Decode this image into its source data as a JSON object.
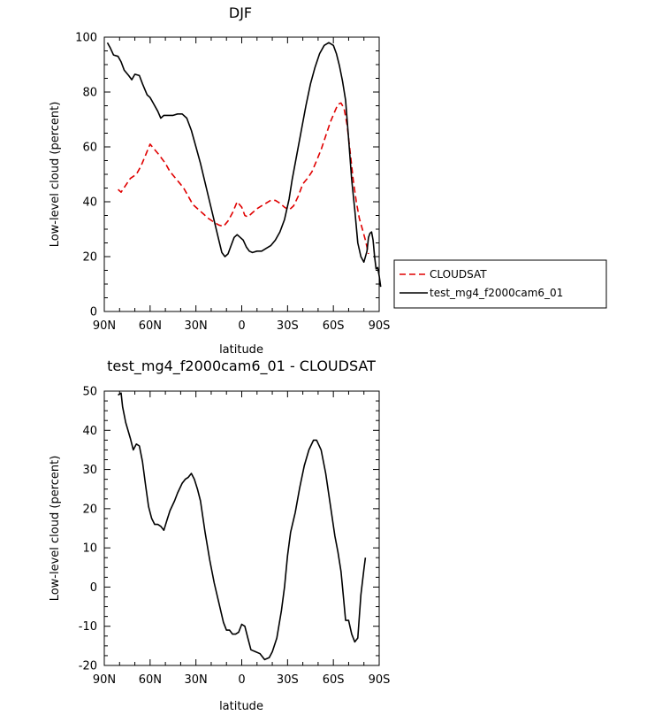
{
  "chart_data": [
    {
      "type": "line",
      "title": "DJF",
      "xlabel": "latitude",
      "ylabel": "Low-level cloud (percent)",
      "x_direction": "north-to-south",
      "xlim": [
        90,
        -90
      ],
      "ylim": [
        0,
        100
      ],
      "x_ticks": [
        {
          "value": 90,
          "label": "90N"
        },
        {
          "value": 60,
          "label": "60N"
        },
        {
          "value": 30,
          "label": "30N"
        },
        {
          "value": 0,
          "label": "0"
        },
        {
          "value": -30,
          "label": "30S"
        },
        {
          "value": -60,
          "label": "60S"
        },
        {
          "value": -90,
          "label": "90S"
        }
      ],
      "y_ticks": [
        0,
        20,
        40,
        60,
        80,
        100
      ],
      "legend_position": "right",
      "series": [
        {
          "name": "CLOUDSAT",
          "color": "#e00000",
          "dash": "dashed",
          "points": [
            [
              81,
              44.5
            ],
            [
              79,
              43.5
            ],
            [
              76,
              46
            ],
            [
              73,
              48.5
            ],
            [
              69,
              50
            ],
            [
              66,
              53
            ],
            [
              63,
              57
            ],
            [
              60,
              61
            ],
            [
              57,
              59
            ],
            [
              54,
              57
            ],
            [
              50,
              54
            ],
            [
              47,
              51
            ],
            [
              44,
              49
            ],
            [
              41,
              47
            ],
            [
              38,
              45
            ],
            [
              35,
              42
            ],
            [
              32,
              39
            ],
            [
              28,
              37
            ],
            [
              25,
              35.5
            ],
            [
              22,
              34
            ],
            [
              18,
              32.5
            ],
            [
              15,
              31.5
            ],
            [
              12,
              31
            ],
            [
              9,
              33
            ],
            [
              6,
              36
            ],
            [
              3,
              40
            ],
            [
              0,
              38
            ],
            [
              -2,
              35
            ],
            [
              -4,
              34.5
            ],
            [
              -7,
              36
            ],
            [
              -10,
              37.5
            ],
            [
              -13,
              38.5
            ],
            [
              -16,
              39.5
            ],
            [
              -19,
              40.5
            ],
            [
              -22,
              40.5
            ],
            [
              -25,
              39.5
            ],
            [
              -28,
              38
            ],
            [
              -31,
              37
            ],
            [
              -34,
              38.5
            ],
            [
              -37,
              42
            ],
            [
              -40,
              46.5
            ],
            [
              -43,
              48.5
            ],
            [
              -46,
              51
            ],
            [
              -49,
              55
            ],
            [
              -52,
              59
            ],
            [
              -55,
              64
            ],
            [
              -58,
              69
            ],
            [
              -61,
              73
            ],
            [
              -63,
              75.5
            ],
            [
              -65,
              76
            ],
            [
              -67,
              74
            ],
            [
              -69,
              68
            ],
            [
              -71,
              58
            ],
            [
              -73,
              48
            ],
            [
              -75,
              40
            ],
            [
              -77,
              34
            ],
            [
              -79,
              30
            ],
            [
              -81,
              26
            ],
            [
              -83,
              21
            ]
          ]
        },
        {
          "name": "test_mg4_f2000cam6_01",
          "color": "#000000",
          "dash": "solid",
          "points": [
            [
              88,
              98
            ],
            [
              86,
              96
            ],
            [
              84,
              93.5
            ],
            [
              81,
              93
            ],
            [
              79,
              91
            ],
            [
              77,
              88
            ],
            [
              74,
              86
            ],
            [
              72,
              84.5
            ],
            [
              70,
              86.5
            ],
            [
              67,
              86
            ],
            [
              65,
              83
            ],
            [
              62,
              79
            ],
            [
              60,
              78
            ],
            [
              58,
              76
            ],
            [
              55,
              73
            ],
            [
              53,
              70.5
            ],
            [
              51,
              71.5
            ],
            [
              48,
              71.5
            ],
            [
              45,
              71.5
            ],
            [
              42,
              72
            ],
            [
              39,
              72
            ],
            [
              36,
              70.5
            ],
            [
              33,
              66
            ],
            [
              30,
              60
            ],
            [
              27,
              54
            ],
            [
              24,
              47
            ],
            [
              21,
              40
            ],
            [
              18,
              33
            ],
            [
              15,
              26
            ],
            [
              13,
              21.5
            ],
            [
              11,
              20
            ],
            [
              9,
              21
            ],
            [
              7,
              24
            ],
            [
              5,
              27
            ],
            [
              3,
              28
            ],
            [
              1,
              27
            ],
            [
              -1,
              26
            ],
            [
              -3,
              23.5
            ],
            [
              -5,
              22
            ],
            [
              -7,
              21.5
            ],
            [
              -10,
              22
            ],
            [
              -13,
              22
            ],
            [
              -16,
              23
            ],
            [
              -19,
              24
            ],
            [
              -22,
              26
            ],
            [
              -25,
              29
            ],
            [
              -28,
              33.5
            ],
            [
              -31,
              41
            ],
            [
              -33,
              48
            ],
            [
              -36,
              57
            ],
            [
              -39,
              66
            ],
            [
              -42,
              75
            ],
            [
              -45,
              83
            ],
            [
              -48,
              89
            ],
            [
              -51,
              94
            ],
            [
              -54,
              97
            ],
            [
              -57,
              98
            ],
            [
              -60,
              97
            ],
            [
              -62,
              94
            ],
            [
              -64,
              89.5
            ],
            [
              -66,
              84
            ],
            [
              -68,
              77
            ],
            [
              -70,
              63
            ],
            [
              -72,
              48
            ],
            [
              -74,
              37
            ],
            [
              -76,
              25
            ],
            [
              -78,
              20
            ],
            [
              -80,
              18
            ],
            [
              -82,
              22
            ],
            [
              -83,
              27
            ],
            [
              -84,
              28.5
            ],
            [
              -85,
              29
            ],
            [
              -86,
              26
            ],
            [
              -87,
              20
            ],
            [
              -88,
              15.5
            ],
            [
              -89,
              16
            ],
            [
              -90,
              13
            ],
            [
              -91,
              9
            ]
          ]
        }
      ]
    },
    {
      "type": "line",
      "title": "test_mg4_f2000cam6_01 - CLOUDSAT",
      "xlabel": "latitude",
      "ylabel": "Low-level cloud (percent)",
      "x_direction": "north-to-south",
      "xlim": [
        90,
        -90
      ],
      "ylim": [
        -20,
        50
      ],
      "x_ticks": [
        {
          "value": 90,
          "label": "90N"
        },
        {
          "value": 60,
          "label": "60N"
        },
        {
          "value": 30,
          "label": "30N"
        },
        {
          "value": 0,
          "label": "0"
        },
        {
          "value": -30,
          "label": "30S"
        },
        {
          "value": -60,
          "label": "60S"
        },
        {
          "value": -90,
          "label": "90S"
        }
      ],
      "y_ticks": [
        -20,
        -10,
        0,
        10,
        20,
        30,
        40,
        50
      ],
      "series": [
        {
          "color": "#000000",
          "dash": "solid",
          "points": [
            [
              81,
              49
            ],
            [
              79,
              49.5
            ],
            [
              78,
              46
            ],
            [
              76,
              42
            ],
            [
              73,
              38
            ],
            [
              71,
              35
            ],
            [
              69,
              36.5
            ],
            [
              67,
              36
            ],
            [
              65,
              32
            ],
            [
              63,
              26
            ],
            [
              61,
              20.5
            ],
            [
              59,
              17.5
            ],
            [
              57,
              16
            ],
            [
              55,
              16
            ],
            [
              53,
              15.5
            ],
            [
              51,
              14.5
            ],
            [
              49,
              17
            ],
            [
              47,
              19.5
            ],
            [
              44,
              22
            ],
            [
              42,
              24
            ],
            [
              39,
              26.5
            ],
            [
              37,
              27.5
            ],
            [
              35,
              28
            ],
            [
              33,
              29
            ],
            [
              31,
              27.5
            ],
            [
              29,
              25
            ],
            [
              27,
              22
            ],
            [
              24,
              14
            ],
            [
              21,
              7
            ],
            [
              18,
              1
            ],
            [
              15,
              -4
            ],
            [
              12,
              -9
            ],
            [
              10,
              -11
            ],
            [
              8,
              -11
            ],
            [
              6,
              -12
            ],
            [
              4,
              -12
            ],
            [
              2,
              -11.5
            ],
            [
              0,
              -9.5
            ],
            [
              -2,
              -10
            ],
            [
              -4,
              -13
            ],
            [
              -6,
              -16
            ],
            [
              -9,
              -16.5
            ],
            [
              -12,
              -17
            ],
            [
              -15,
              -18.5
            ],
            [
              -18,
              -18
            ],
            [
              -20,
              -16.5
            ],
            [
              -23,
              -13
            ],
            [
              -26,
              -6
            ],
            [
              -28,
              0
            ],
            [
              -30,
              8
            ],
            [
              -32,
              14
            ],
            [
              -35,
              19
            ],
            [
              -38,
              25.5
            ],
            [
              -41,
              31
            ],
            [
              -44,
              35
            ],
            [
              -47,
              37.5
            ],
            [
              -49,
              37.5
            ],
            [
              -52,
              35
            ],
            [
              -55,
              29
            ],
            [
              -58,
              21
            ],
            [
              -61,
              13
            ],
            [
              -63,
              9
            ],
            [
              -65,
              4
            ],
            [
              -66,
              0
            ],
            [
              -68,
              -8.5
            ],
            [
              -70,
              -8.5
            ],
            [
              -72,
              -12
            ],
            [
              -74,
              -14
            ],
            [
              -76,
              -13
            ],
            [
              -78,
              -2
            ],
            [
              -80,
              4.5
            ],
            [
              -81,
              7.5
            ]
          ]
        }
      ]
    }
  ]
}
